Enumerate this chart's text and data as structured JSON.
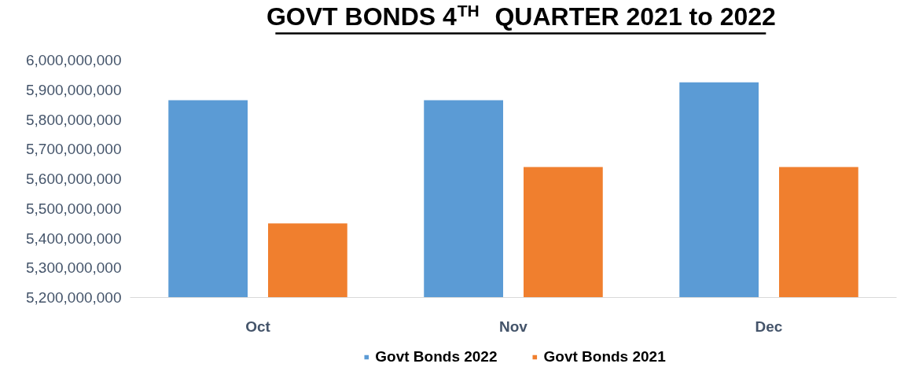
{
  "chart_data": {
    "type": "bar",
    "title": "GOVT BONDS 4$^{TH}$ QUARTER 2021 to 2022",
    "categories": [
      "Oct",
      "Nov",
      "Dec"
    ],
    "series": [
      {
        "name": "Govt Bonds 2022",
        "color": "#5b9bd5",
        "values": [
          5865000000,
          5865000000,
          5925000000
        ]
      },
      {
        "name": "Govt Bonds 2021",
        "color": "#f07f2e",
        "values": [
          5450000000,
          5640000000,
          5640000000
        ]
      }
    ],
    "ylim": [
      5200000000,
      6000000000
    ],
    "yticks": [
      {
        "value": 5200000000,
        "label": "5,200,000,000"
      },
      {
        "value": 5300000000,
        "label": "5,300,000,000"
      },
      {
        "value": 5400000000,
        "label": "5,400,000,000"
      },
      {
        "value": 5500000000,
        "label": "5,500,000,000"
      },
      {
        "value": 5600000000,
        "label": "5,600,000,000"
      },
      {
        "value": 5700000000,
        "label": "5,700,000,000"
      },
      {
        "value": 5800000000,
        "label": "5,800,000,000"
      },
      {
        "value": 5900000000,
        "label": "5,900,000,000"
      },
      {
        "value": 6000000000,
        "label": "6,000,000,000"
      }
    ],
    "grid": false,
    "legend": "bottom"
  }
}
